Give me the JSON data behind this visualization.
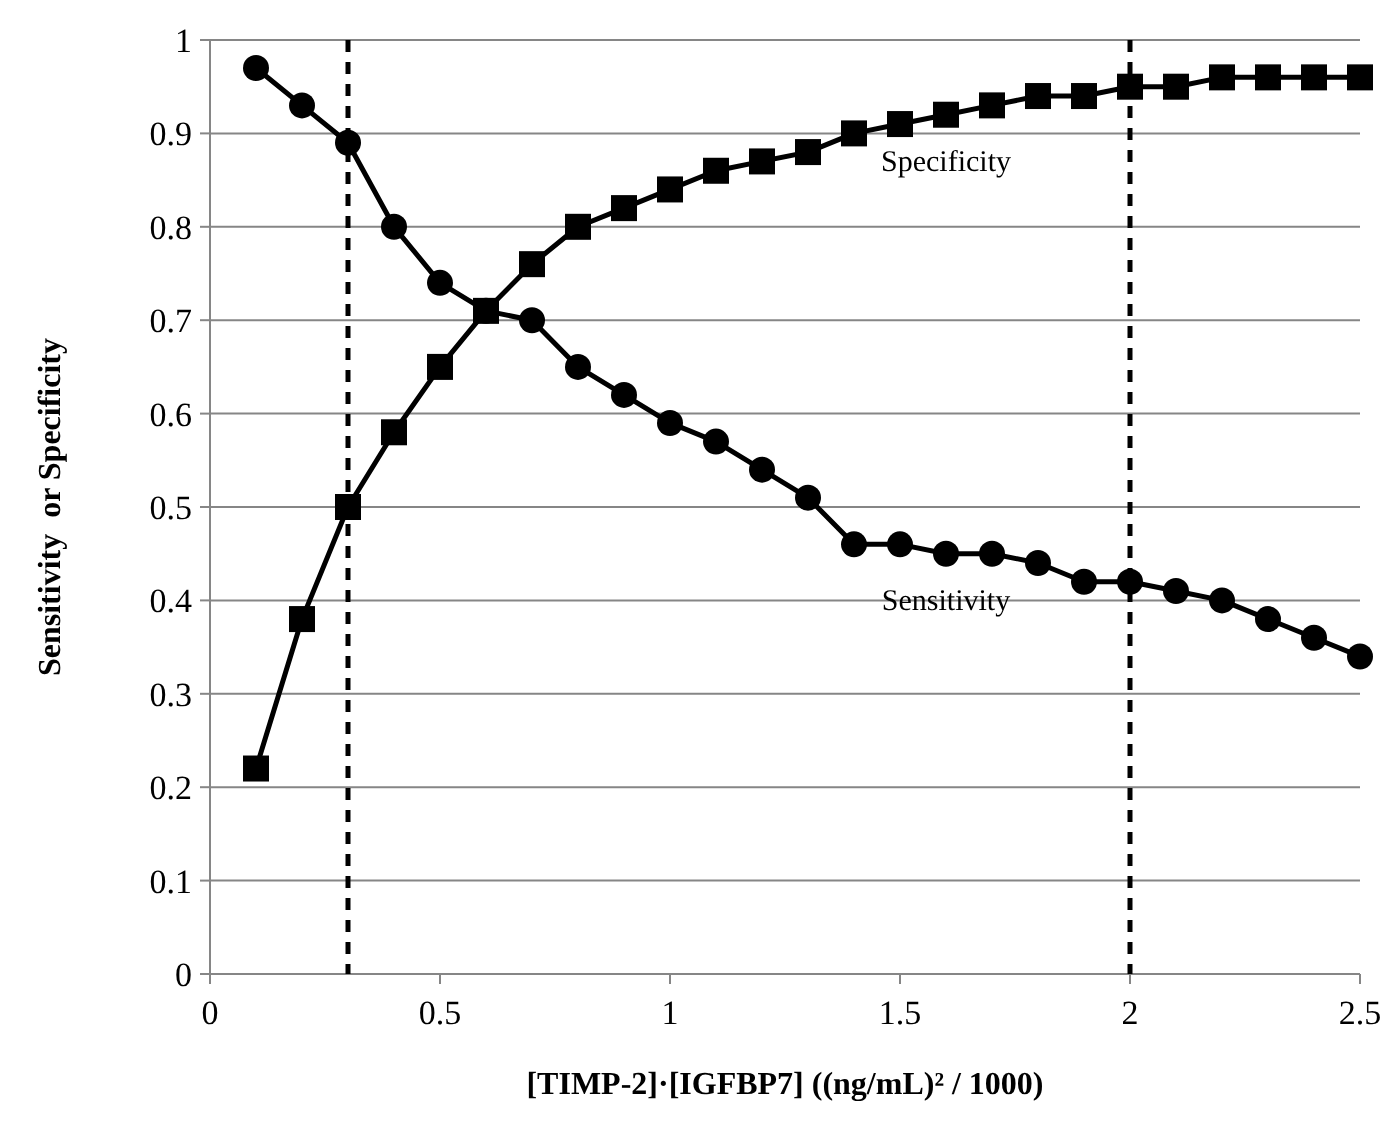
{
  "chart_data": {
    "type": "line",
    "xlabel": "[TIMP-2]·[IGFBP7] ((ng/mL)² / 1000)",
    "ylabel": "Sensitivity  or Specificity",
    "x": [
      0.1,
      0.2,
      0.3,
      0.4,
      0.5,
      0.6,
      0.7,
      0.8,
      0.9,
      1.0,
      1.1,
      1.2,
      1.3,
      1.4,
      1.5,
      1.6,
      1.7,
      1.8,
      1.9,
      2.0,
      2.1,
      2.2,
      2.3,
      2.4,
      2.5
    ],
    "series": [
      {
        "name": "Sensitivity",
        "color": "#000000",
        "marker": "circle",
        "values": [
          0.97,
          0.93,
          0.89,
          0.8,
          0.74,
          0.71,
          0.7,
          0.65,
          0.62,
          0.59,
          0.57,
          0.54,
          0.51,
          0.46,
          0.46,
          0.45,
          0.45,
          0.44,
          0.42,
          0.42,
          0.41,
          0.4,
          0.38,
          0.36,
          0.34
        ]
      },
      {
        "name": "Specificity",
        "color": "#000000",
        "marker": "square",
        "values": [
          0.22,
          0.38,
          0.5,
          0.58,
          0.65,
          0.71,
          0.76,
          0.8,
          0.82,
          0.84,
          0.86,
          0.87,
          0.88,
          0.9,
          0.91,
          0.92,
          0.93,
          0.94,
          0.94,
          0.95,
          0.95,
          0.96,
          0.96,
          0.96,
          0.96
        ]
      }
    ],
    "xlim": [
      0,
      2.5
    ],
    "xticks": [
      0,
      0.5,
      1,
      1.5,
      2,
      2.5
    ],
    "ylim": [
      0,
      1
    ],
    "yticks": [
      0,
      0.1,
      0.2,
      0.3,
      0.4,
      0.5,
      0.6,
      0.7,
      0.8,
      0.9,
      1
    ],
    "grid": "y",
    "line_style": "solid",
    "ref_lines": [
      {
        "axis": "x",
        "value": 0.3,
        "line_style": "dashed",
        "color": "#000000"
      },
      {
        "axis": "x",
        "value": 2.0,
        "line_style": "dashed",
        "color": "#000000"
      }
    ]
  }
}
